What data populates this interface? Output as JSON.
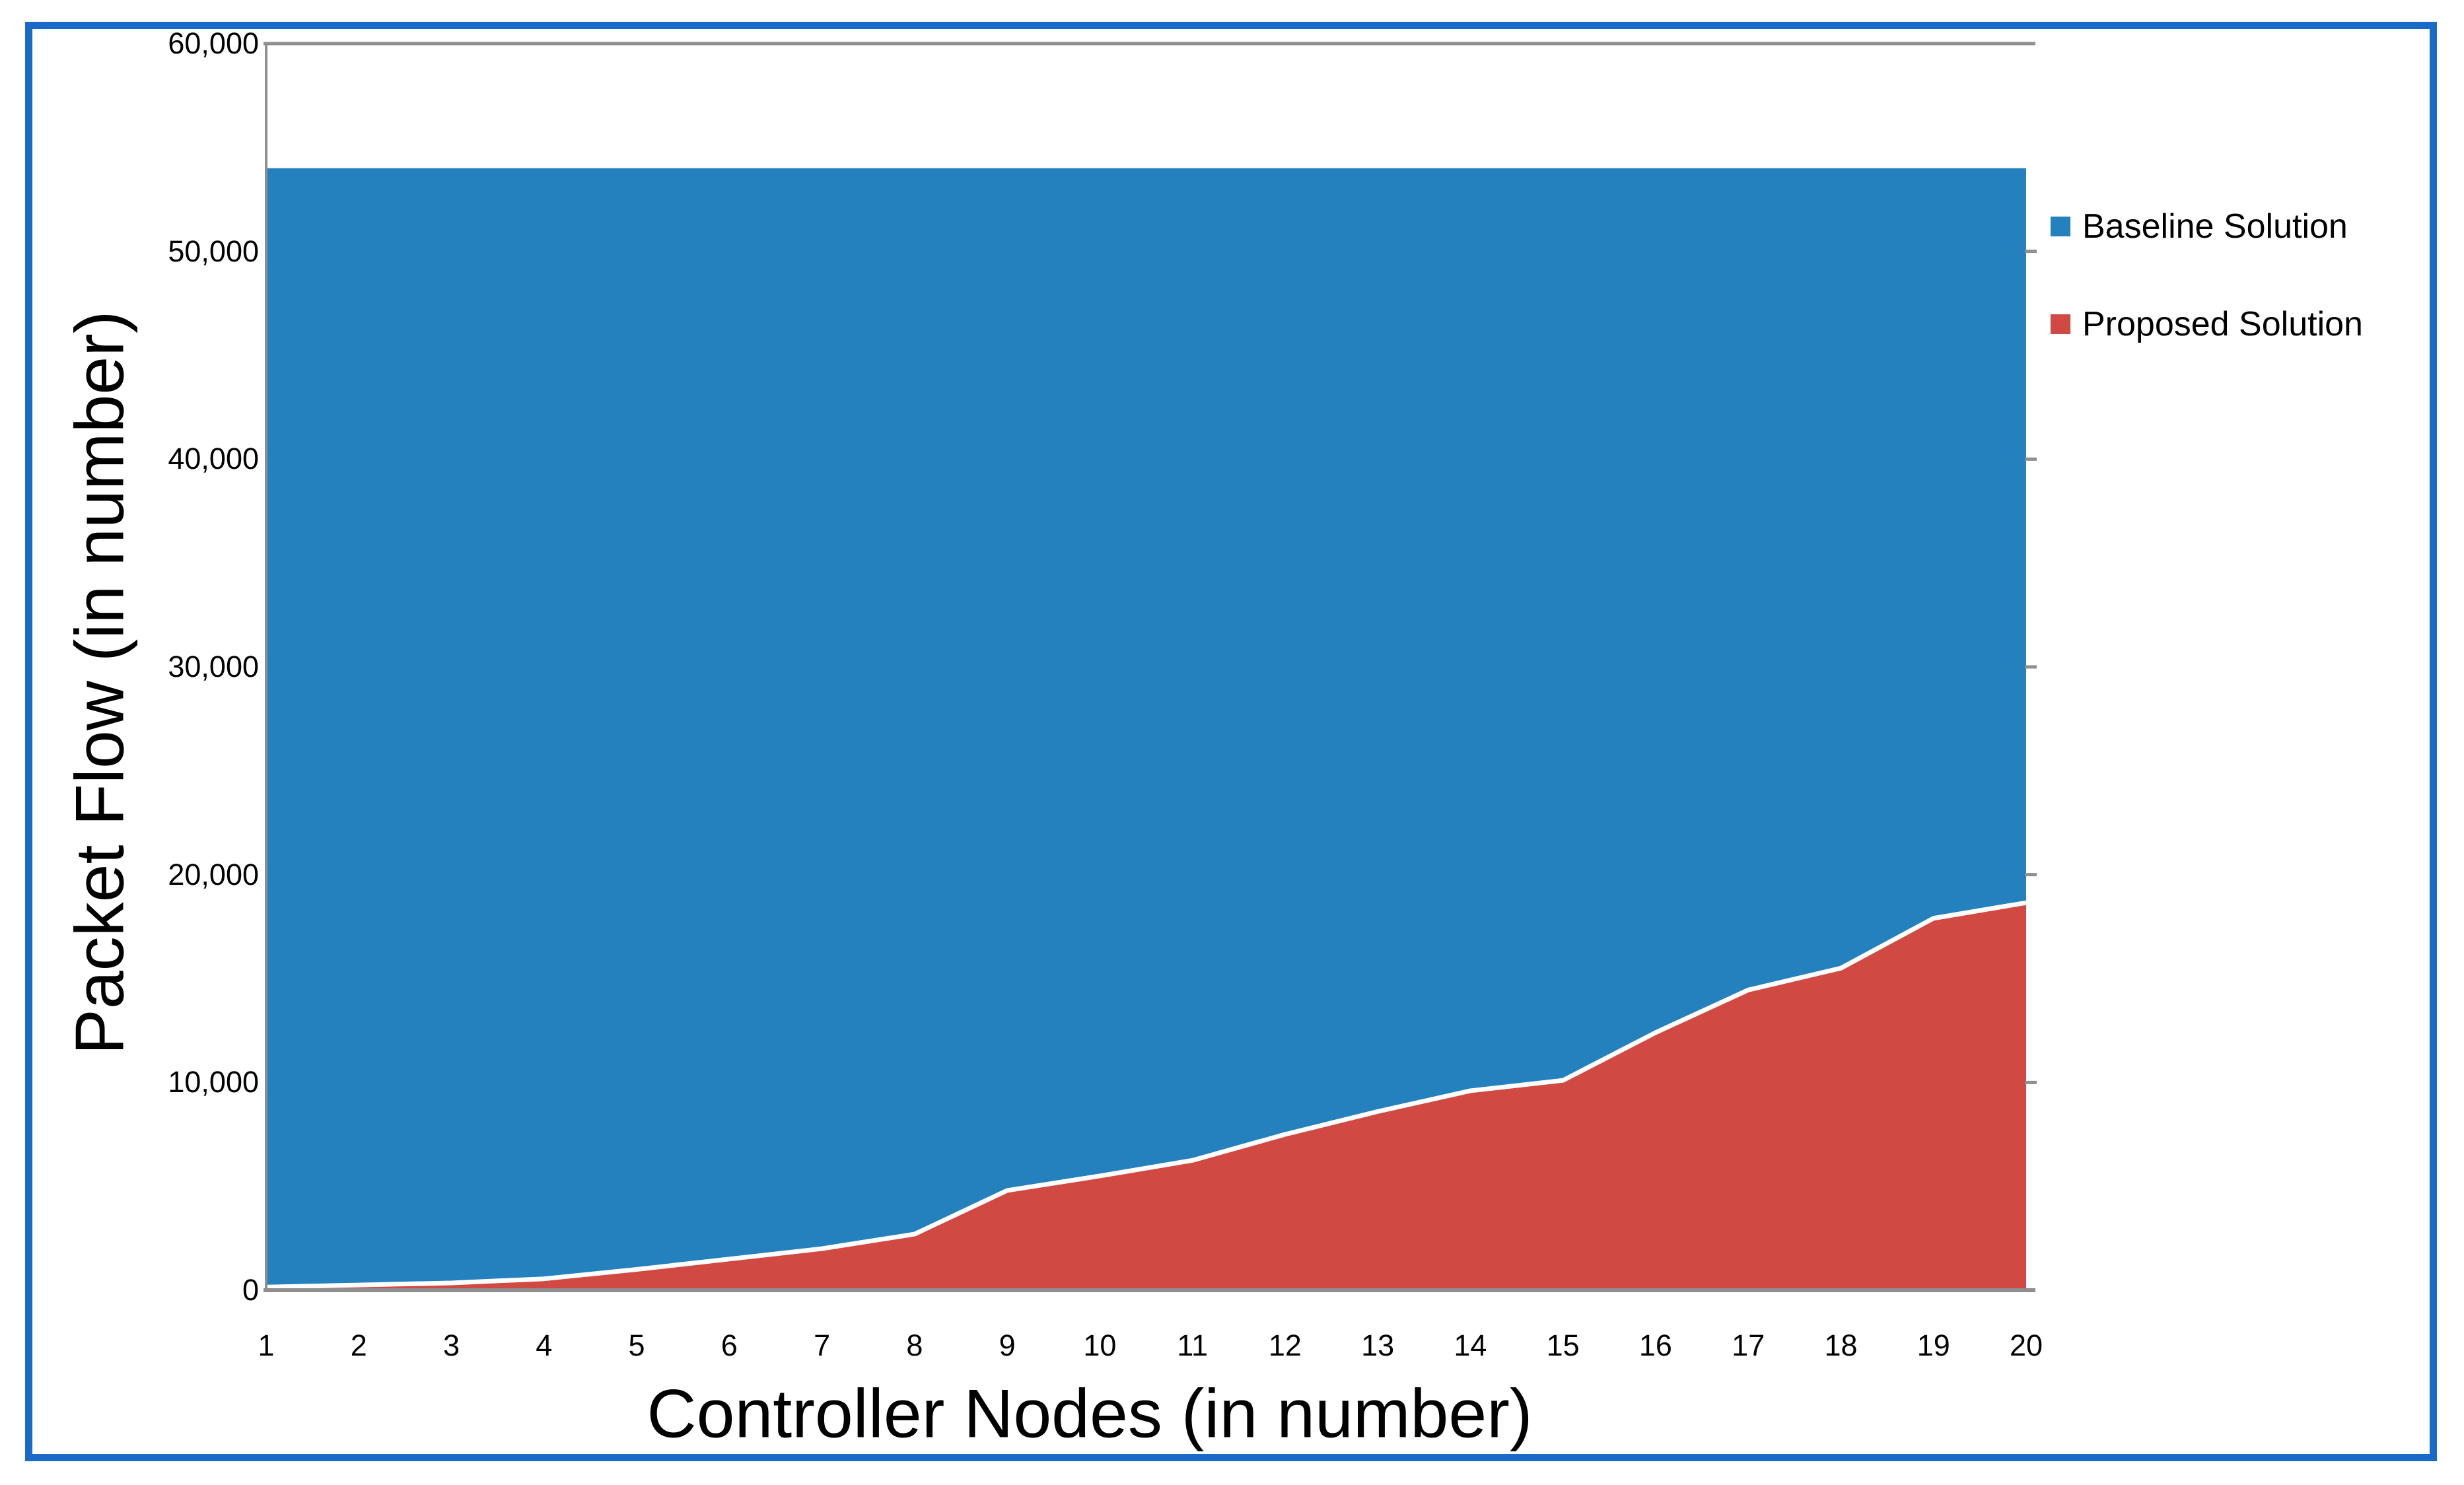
{
  "figure": {
    "frame_color": "#1A6BC7",
    "background_color": "#FFFFFF",
    "plot_border_color": "#8F8F8F",
    "boundary_line_color": "#FFFFFF"
  },
  "chart_data": {
    "type": "area",
    "title": "",
    "xlabel": "Controller Nodes (in number)",
    "ylabel": "Packet Flow (in number)",
    "x": [
      1,
      2,
      3,
      4,
      5,
      6,
      7,
      8,
      9,
      10,
      11,
      12,
      13,
      14,
      15,
      16,
      17,
      18,
      19,
      20
    ],
    "series": [
      {
        "name": "Baseline Solution",
        "color": "#2580BE",
        "values": [
          54000,
          54000,
          54000,
          54000,
          54000,
          54000,
          54000,
          54000,
          54000,
          54000,
          54000,
          54000,
          54000,
          54000,
          54000,
          54000,
          54000,
          54000,
          54000,
          54000
        ]
      },
      {
        "name": "Proposed Solution",
        "color": "#D04A43",
        "values": [
          150,
          250,
          350,
          550,
          1000,
          1500,
          2000,
          2700,
          4800,
          5500,
          6250,
          7500,
          8600,
          9600,
          10100,
          12400,
          14450,
          15500,
          17900,
          18650
        ]
      }
    ],
    "ylim": [
      0,
      60000
    ],
    "ytick_interval": 10000,
    "grid": false,
    "legend_position": "right"
  },
  "axes": {
    "x": {
      "title": "Controller Nodes (in number)",
      "tick_labels": [
        "1",
        "2",
        "3",
        "4",
        "5",
        "6",
        "7",
        "8",
        "9",
        "10",
        "11",
        "12",
        "13",
        "14",
        "15",
        "16",
        "17",
        "18",
        "19",
        "20"
      ]
    },
    "y": {
      "title": "Packet Flow (in number)",
      "tick_labels": [
        "0",
        "10,000",
        "20,000",
        "30,000",
        "40,000",
        "50,000",
        "60,000"
      ]
    }
  },
  "legend": {
    "items": [
      {
        "label": "Baseline Solution",
        "color": "#2580BE"
      },
      {
        "label": "Proposed Solution",
        "color": "#D04A43"
      }
    ]
  }
}
